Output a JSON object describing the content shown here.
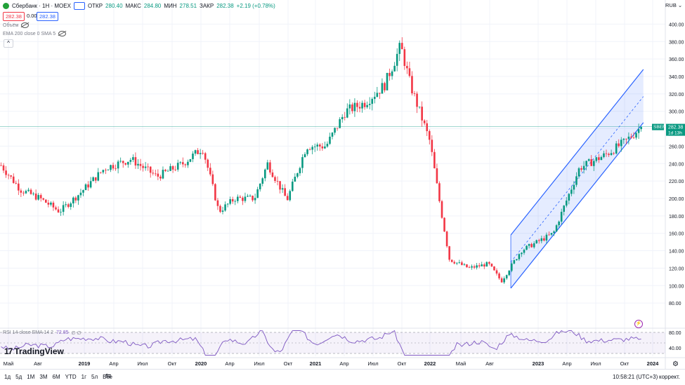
{
  "header": {
    "symbol": "Сбербанк · 1Н · MOEX",
    "open_label": "ОТКР",
    "open_value": "280.40",
    "high_label": "МАКС",
    "high_value": "284.80",
    "low_label": "МИН",
    "low_value": "278.51",
    "close_label": "ЗАКР",
    "close_value": "282.38",
    "change": "+2.19 (+0.78%)",
    "bid": "282.38",
    "spread": "0.00",
    "ask": "282.38",
    "volume_label": "Объём",
    "ema_label": "EMA 200 close 0 SMA 5",
    "currency": "RUB"
  },
  "rsi": {
    "label": "RSI 14 close EMA 14 2",
    "value": "72.85",
    "extra": "∅ ∅"
  },
  "toolbar": {
    "ranges": [
      "1д",
      "5д",
      "1М",
      "3М",
      "6М",
      "YTD",
      "1г",
      "5л",
      "Все"
    ],
    "clock": "10:58:21 (UTC+3)",
    "correction": "коррект.",
    "brand": "TradingView"
  },
  "price_tag": {
    "symbol": "SBER",
    "price": "282.38",
    "countdown": "1d 13h"
  },
  "chart_data": {
    "type": "candlestick",
    "y_ticks": [
      "400.00",
      "380.00",
      "360.00",
      "340.00",
      "320.00",
      "300.00",
      "280.00",
      "260.00",
      "240.00",
      "220.00",
      "200.00",
      "180.00",
      "160.00",
      "140.00",
      "120.00",
      "100.00",
      "80.00"
    ],
    "ylim": [
      64,
      410
    ],
    "rsi_ticks": [
      "80.00",
      "40.00"
    ],
    "x_ticks": [
      "Май",
      "Авг",
      "2019",
      "Апр",
      "Июл",
      "Окт",
      "2020",
      "Апр",
      "Июл",
      "Окт",
      "2021",
      "Апр",
      "Июл",
      "Окт",
      "2022",
      "Май",
      "Авг",
      "2023",
      "Апр",
      "Июл",
      "Окт",
      "2024"
    ],
    "keypoints": [
      [
        0,
        238
      ],
      [
        0.03,
        210
      ],
      [
        0.06,
        200
      ],
      [
        0.09,
        185
      ],
      [
        0.12,
        205
      ],
      [
        0.16,
        235
      ],
      [
        0.2,
        245
      ],
      [
        0.24,
        225
      ],
      [
        0.28,
        240
      ],
      [
        0.31,
        258
      ],
      [
        0.32,
        230
      ],
      [
        0.335,
        185
      ],
      [
        0.36,
        200
      ],
      [
        0.39,
        200
      ],
      [
        0.41,
        240
      ],
      [
        0.44,
        198
      ],
      [
        0.47,
        260
      ],
      [
        0.5,
        260
      ],
      [
        0.53,
        300
      ],
      [
        0.56,
        310
      ],
      [
        0.59,
        330
      ],
      [
        0.615,
        375
      ],
      [
        0.63,
        330
      ],
      [
        0.66,
        265
      ],
      [
        0.675,
        195
      ],
      [
        0.69,
        130
      ],
      [
        0.72,
        120
      ],
      [
        0.75,
        125
      ],
      [
        0.77,
        105
      ],
      [
        0.8,
        140
      ],
      [
        0.85,
        160
      ],
      [
        0.89,
        235
      ],
      [
        0.93,
        250
      ],
      [
        0.96,
        265
      ],
      [
        0.985,
        282
      ]
    ],
    "last_price": 282.38,
    "channel": {
      "upper": [
        [
          0.786,
          158
        ],
        [
          0.99,
          348
        ]
      ],
      "lower": [
        [
          0.786,
          97
        ],
        [
          0.99,
          287
        ]
      ],
      "mid": [
        [
          0.786,
          127
        ],
        [
          0.99,
          317
        ]
      ]
    },
    "colors": {
      "up": "#089981",
      "down": "#f23645",
      "channel": "#2962ff"
    }
  }
}
